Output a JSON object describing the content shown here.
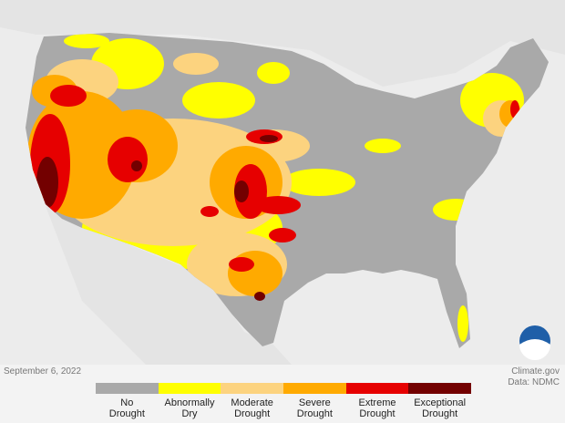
{
  "map": {
    "date": "September 6, 2022",
    "credit": "Climate.gov",
    "source": "Data: NDMC",
    "legend": [
      {
        "label": [
          "No",
          "Drought"
        ],
        "color": "#a9a9a9"
      },
      {
        "label": [
          "Abnormally",
          "Dry"
        ],
        "color": "#ffff00"
      },
      {
        "label": [
          "Moderate",
          "Drought"
        ],
        "color": "#fcd37f"
      },
      {
        "label": [
          "Severe",
          "Drought"
        ],
        "color": "#ffaa00"
      },
      {
        "label": [
          "Extreme",
          "Drought"
        ],
        "color": "#e60000"
      },
      {
        "label": [
          "Exceptional",
          "Drought"
        ],
        "color": "#730000"
      }
    ]
  }
}
